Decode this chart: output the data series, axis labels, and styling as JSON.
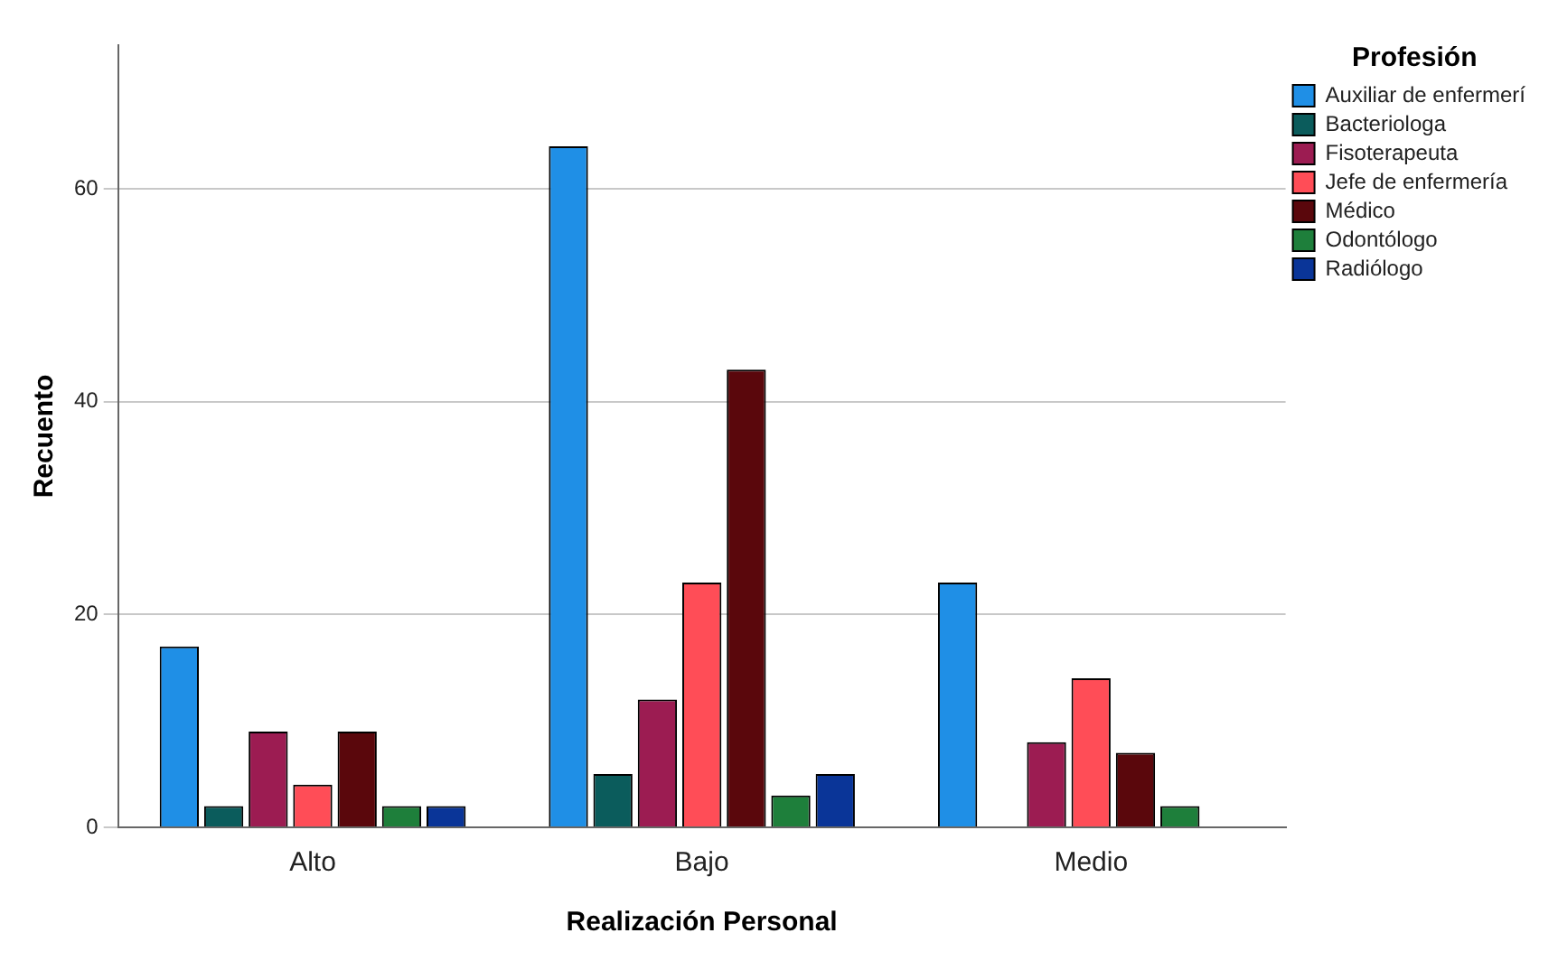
{
  "chart_data": {
    "type": "bar",
    "xlabel": "Realización Personal",
    "ylabel": "Recuento",
    "legend_title": "Profesión",
    "categories": [
      "Alto",
      "Bajo",
      "Medio"
    ],
    "series": [
      {
        "name": "Auxiliar de enfermerí",
        "color": "#1f8fe6",
        "values": [
          17,
          64,
          23
        ]
      },
      {
        "name": "Bacteriologa",
        "color": "#0b5c5c",
        "values": [
          2,
          5,
          null
        ]
      },
      {
        "name": "Fisoterapeuta",
        "color": "#9c1c52",
        "values": [
          9,
          12,
          8
        ]
      },
      {
        "name": "Jefe de enfermería",
        "color": "#ff4d57",
        "values": [
          4,
          23,
          14
        ]
      },
      {
        "name": "Médico",
        "color": "#5a070c",
        "values": [
          9,
          43,
          7
        ]
      },
      {
        "name": "Odontólogo",
        "color": "#1e7f3b",
        "values": [
          2,
          3,
          2
        ]
      },
      {
        "name": "Radiólogo",
        "color": "#0a3598",
        "values": [
          2,
          5,
          null
        ]
      }
    ],
    "ylim": [
      0,
      73.5
    ],
    "yticks": [
      0,
      20,
      40,
      60
    ],
    "grid": "y",
    "legend": "top right"
  }
}
